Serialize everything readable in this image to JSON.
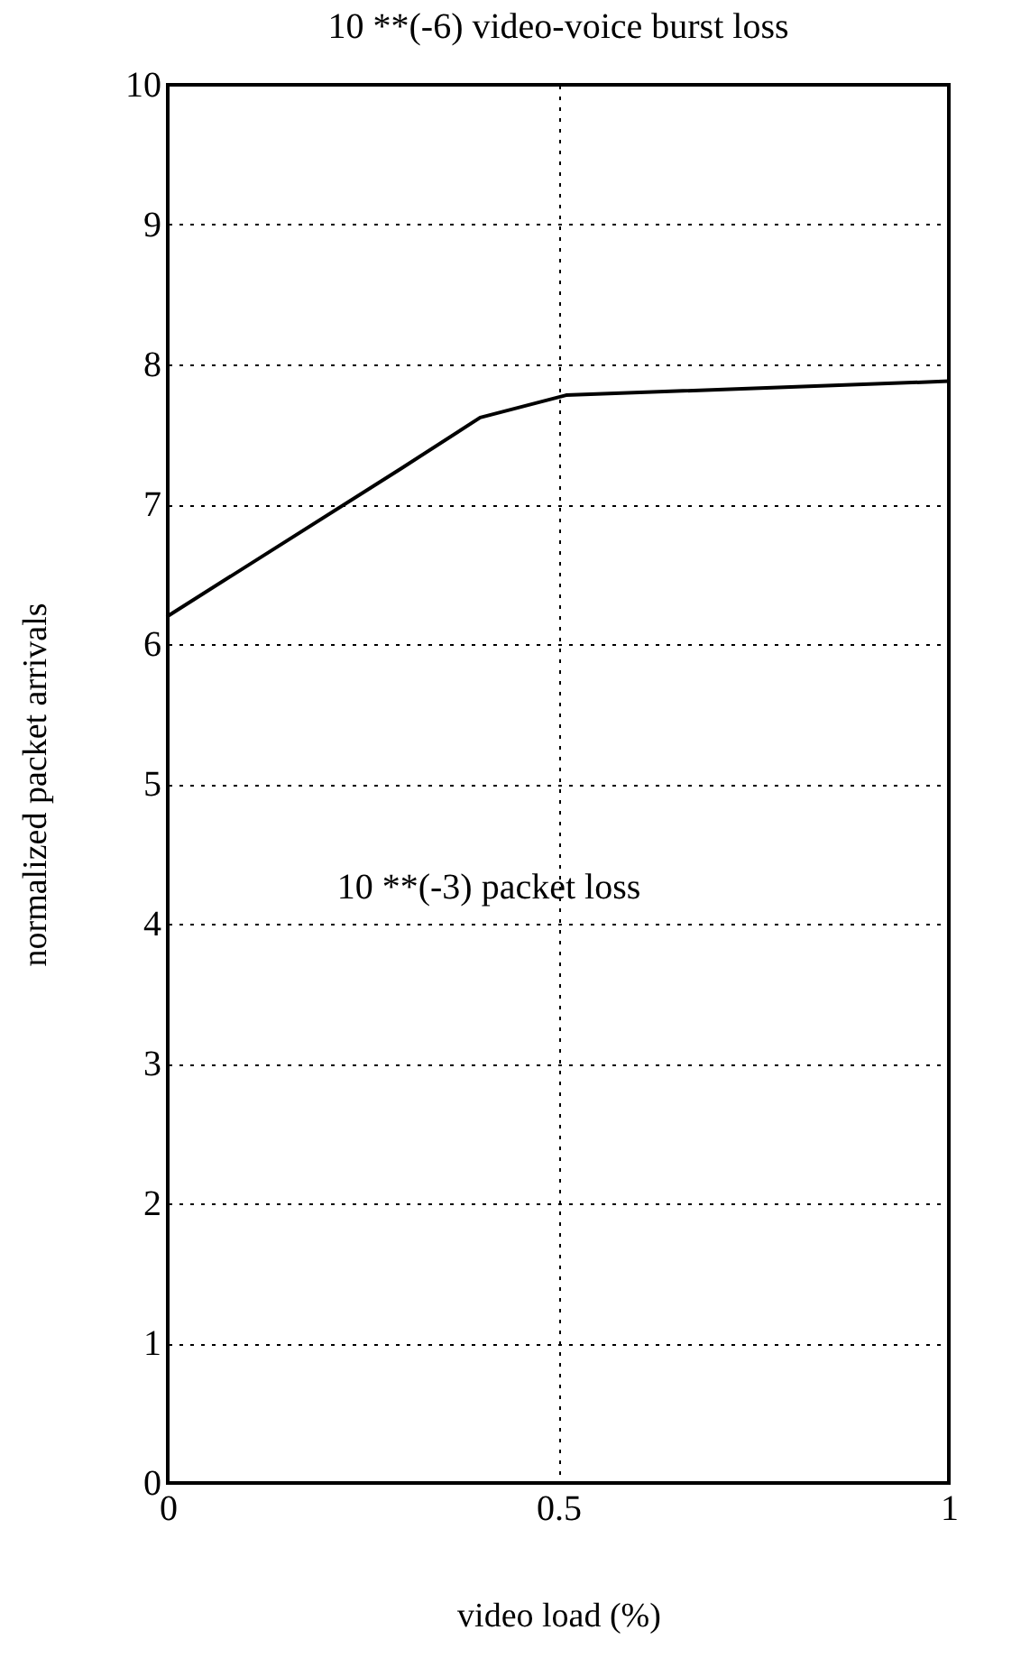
{
  "chart_data": {
    "type": "line",
    "title": "10 **(-6) video-voice burst loss",
    "xlabel": "video load (%)",
    "ylabel": "normalized packet arrivals",
    "annotations": [
      "10 **(-3) packet loss"
    ],
    "x": [
      0,
      0.3,
      0.4,
      0.51,
      1
    ],
    "series": [
      {
        "color": "#000000",
        "values": [
          6.2,
          7.26,
          7.62,
          7.78,
          7.88
        ]
      }
    ],
    "xlim": [
      0,
      1
    ],
    "xticks": [
      0,
      0.5,
      1
    ],
    "ylim": [
      0,
      10
    ],
    "yticks": [
      0,
      1,
      2,
      3,
      4,
      5,
      6,
      7,
      8,
      9,
      10
    ],
    "grid": true,
    "marker": "none",
    "line_style": "solid"
  }
}
